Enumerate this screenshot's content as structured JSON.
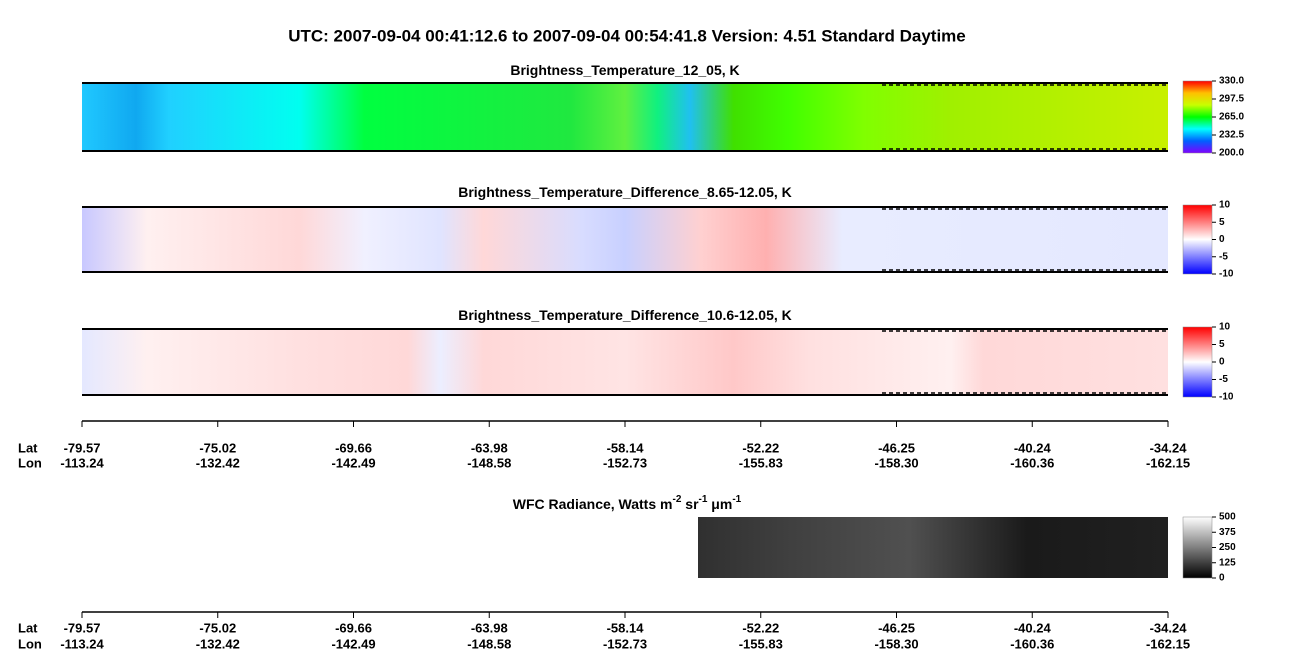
{
  "title": "UTC:  2007-09-04   00:41:12.6  to  2007-09-04   00:54:41.8    Version: 4.51  Standard Daytime",
  "chart_data": [
    {
      "type": "heatmap",
      "title": [
        "Brightness_Temperature_12_05, K"
      ],
      "clim": [
        200,
        330
      ],
      "cticks": [
        {
          "value": 200,
          "label": "200.0"
        },
        232.5,
        {
          "value": 265,
          "label": "265.0"
        },
        297.5,
        {
          "value": 330,
          "label": "330.0"
        }
      ],
      "colors": [
        "#8000ff",
        "#0060ff",
        "#00ffff",
        "#00ff00",
        "#c8ff00",
        "#ffc000",
        "#ff0000"
      ]
    },
    {
      "type": "heatmap",
      "title": [
        "Brightness_Temperature_Difference_8.65-12.05, K"
      ],
      "clim": [
        -10,
        10
      ],
      "cticks": [
        -10,
        -5,
        0,
        5,
        10
      ],
      "colors": [
        "#0000ff",
        "#ffffff",
        "#ff0000"
      ]
    },
    {
      "type": "heatmap",
      "title": [
        "Brightness_Temperature_Difference_10.6-12.05, K"
      ],
      "clim": [
        -10,
        10
      ],
      "cticks": [
        -10,
        -5,
        0,
        5,
        10
      ],
      "colors": [
        "#0000ff",
        "#ffffff",
        "#ff0000"
      ]
    },
    {
      "type": "heatmap",
      "title": [
        "WFC Radiance, Watts m",
        "-2",
        " sr",
        "-1",
        " μm",
        "-1"
      ],
      "clim": [
        0,
        500
      ],
      "cticks": [
        0,
        125,
        250,
        375,
        500
      ],
      "colors": [
        "#000000",
        "#ffffff"
      ]
    }
  ],
  "track_axis": {
    "lat_label": "Lat",
    "lon_label": "Lon",
    "lat": [
      -79.57,
      -75.02,
      -69.66,
      -63.98,
      -58.14,
      -52.22,
      -46.25,
      -40.24,
      -34.24
    ],
    "lon": [
      -113.24,
      -132.42,
      -142.49,
      -148.58,
      -152.73,
      -155.83,
      {
        "value": -158.3,
        "label": "-158.30"
      },
      -160.36,
      -162.15
    ]
  }
}
